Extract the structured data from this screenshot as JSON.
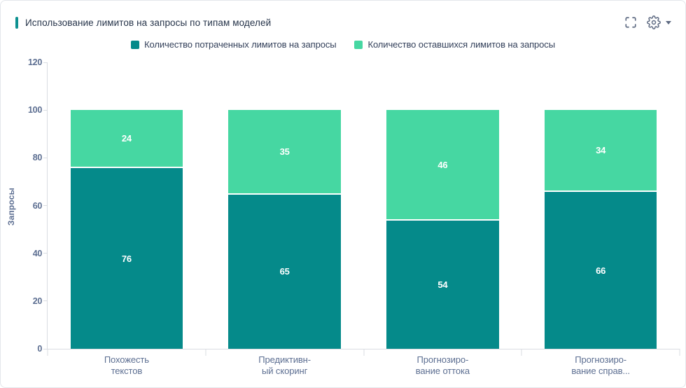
{
  "header": {
    "title": "Использование лимитов на запросы по типам моделей"
  },
  "icons": {
    "fullscreen": "fullscreen-icon",
    "settings": "gear-icon",
    "dropdown": "chevron-down-icon"
  },
  "colors": {
    "accent": "#0d9190",
    "spent_series": "#058a8a",
    "remaining_series": "#46d7a2",
    "axis_text": "#5c6e91",
    "title_text": "#253349",
    "axis_line": "#d9dce2",
    "icon": "#5e6a82",
    "bar_value_text": "#ffffff"
  },
  "chart_data": {
    "type": "bar",
    "stacked": true,
    "title": "Использование лимитов на запросы по типам моделей",
    "categories": [
      "Похожесть\nтекстов",
      "Предиктивн-\nый скоринг",
      "Прогнозиро-\nвание оттока",
      "Прогнозиро-\nвание справ..."
    ],
    "series": [
      {
        "name": "Количество потраченных лимитов на запросы",
        "key": "spent",
        "color": "#058a8a",
        "values": [
          76,
          65,
          54,
          66
        ]
      },
      {
        "name": "Количество оставшихся лимитов на запросы",
        "key": "remaining",
        "color": "#46d7a2",
        "values": [
          24,
          35,
          46,
          34
        ]
      }
    ],
    "totals": [
      100,
      100,
      100,
      100
    ],
    "xlabel": "",
    "ylabel": "Запросы",
    "ylim": [
      0,
      120
    ],
    "yticks": [
      0,
      20,
      40,
      60,
      80,
      100,
      120
    ],
    "grid": false,
    "legend_position": "top",
    "bar_value_labels": true
  }
}
